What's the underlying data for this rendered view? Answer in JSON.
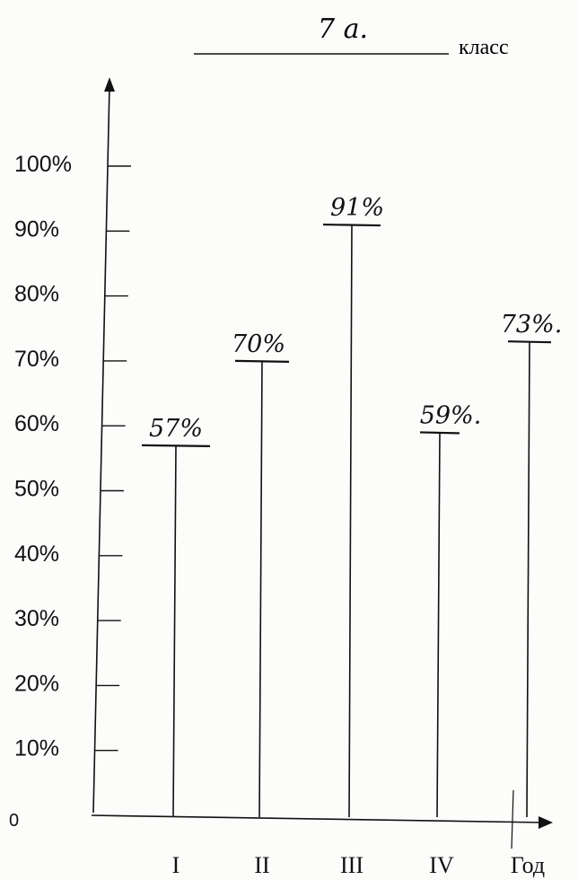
{
  "header": {
    "class_value": "7 а.",
    "class_word": "класс"
  },
  "chart_data": {
    "type": "bar",
    "title": "",
    "xlabel": "",
    "ylabel": "",
    "categories": [
      "I",
      "II",
      "III",
      "IV",
      "Год"
    ],
    "values": [
      57,
      70,
      91,
      59,
      73
    ],
    "data_labels": [
      "57%",
      "70%",
      "91%",
      "59%.",
      "73%."
    ],
    "y_ticks": [
      "0",
      "10%",
      "20%",
      "30%",
      "40%",
      "50%",
      "60%",
      "70%",
      "80%",
      "90%",
      "100%"
    ],
    "ylim": [
      0,
      100
    ],
    "grid": false,
    "colors": {
      "ink": "#111111",
      "paper": "#fcfcfb"
    }
  }
}
